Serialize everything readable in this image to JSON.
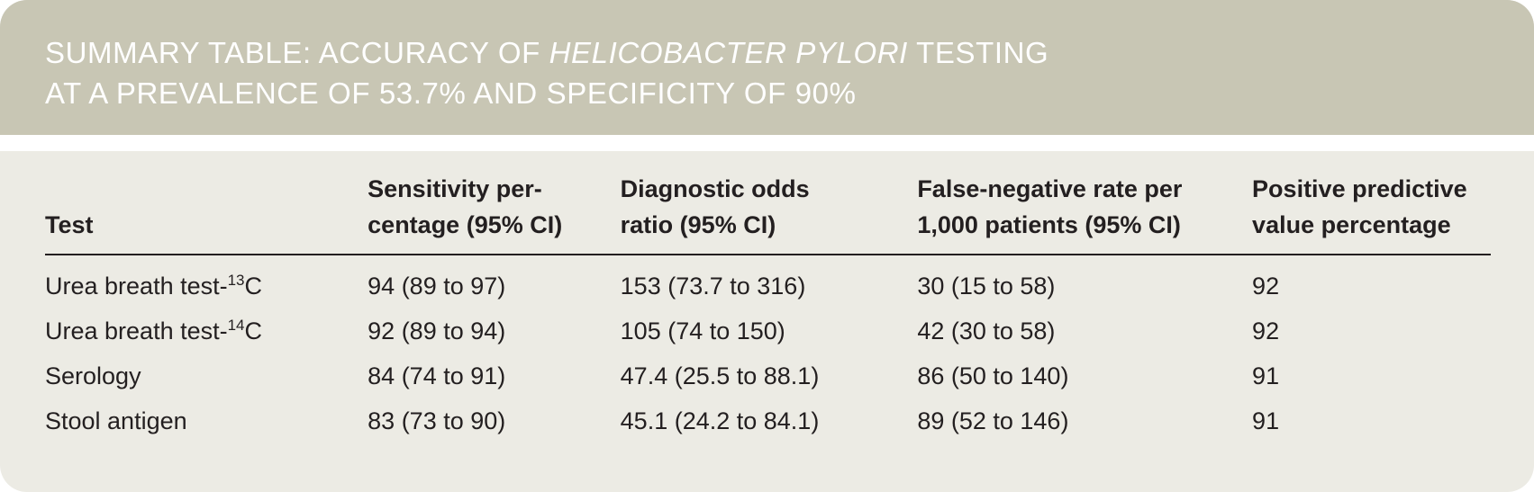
{
  "title": {
    "line1_prefix": "SUMMARY TABLE: ACCURACY OF ",
    "line1_italic": "HELICOBACTER PYLORI",
    "line1_suffix": " TESTING",
    "line2": "AT A PREVALENCE OF 53.7% AND SPECIFICITY OF 90%"
  },
  "table": {
    "headers": {
      "test": "Test",
      "sensitivity_line1": "Sensitivity per-",
      "sensitivity_line2": "centage (95% CI)",
      "odds_line1": "Diagnostic odds",
      "odds_line2": "ratio (95% CI)",
      "fnr_line1": "False-negative rate per",
      "fnr_line2": "1,000 patients (95% CI)",
      "ppv_line1": "Positive predictive",
      "ppv_line2": "value percentage"
    },
    "rows": [
      {
        "test": "Urea breath test-",
        "isotope_mass": "13",
        "isotope_element": "C",
        "sensitivity": "94 (89 to 97)",
        "odds_ratio": "153 (73.7 to 316)",
        "false_negative_rate": "30 (15 to 58)",
        "ppv": "92"
      },
      {
        "test": "Urea breath test-",
        "isotope_mass": "14",
        "isotope_element": "C",
        "sensitivity": "92 (89 to 94)",
        "odds_ratio": "105 (74 to 150)",
        "false_negative_rate": "42 (30 to 58)",
        "ppv": "92"
      },
      {
        "test": "Serology",
        "sensitivity": "84 (74 to 91)",
        "odds_ratio": "47.4 (25.5 to 88.1)",
        "false_negative_rate": "86 (50 to 140)",
        "ppv": "91"
      },
      {
        "test": "Stool antigen",
        "sensitivity": "83 (73 to 90)",
        "odds_ratio": "45.1 (24.2 to 84.1)",
        "false_negative_rate": "89 (52 to 146)",
        "ppv": "91"
      }
    ]
  }
}
